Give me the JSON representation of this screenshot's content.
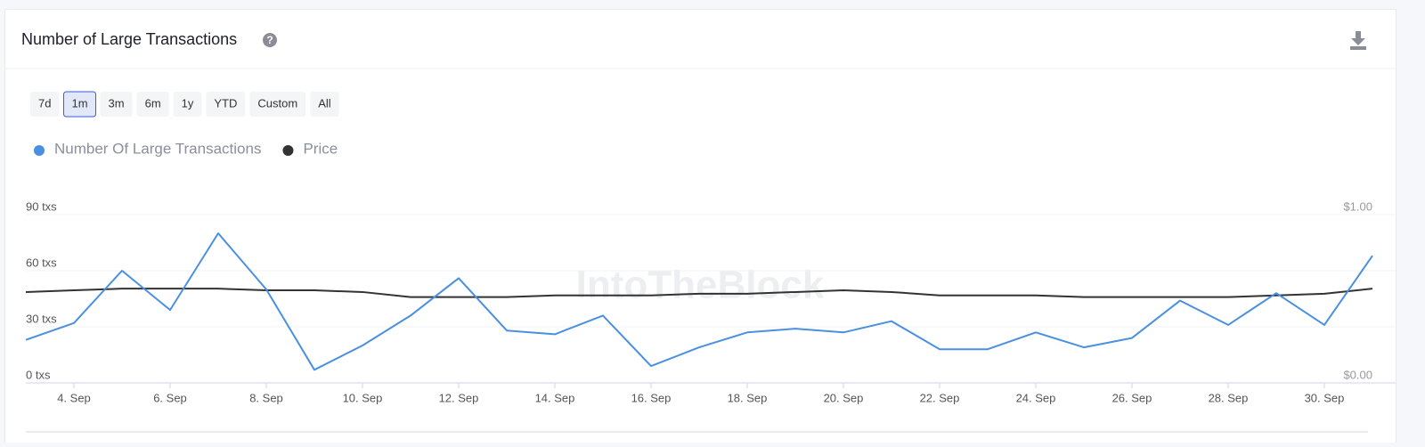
{
  "header": {
    "title": "Number of Large Transactions"
  },
  "range_buttons": [
    "7d",
    "1m",
    "3m",
    "6m",
    "1y",
    "YTD",
    "Custom",
    "All"
  ],
  "selected_button": 1,
  "chart_data": {
    "type": "line",
    "watermark": "IntoTheBlock",
    "categories": [
      null,
      "4. Sep",
      null,
      "6. Sep",
      null,
      "8. Sep",
      null,
      "10. Sep",
      null,
      "12. Sep",
      null,
      "14. Sep",
      null,
      "16. Sep",
      null,
      "18. Sep",
      null,
      "20. Sep",
      null,
      "22. Sep",
      null,
      "24. Sep",
      null,
      "26. Sep",
      null,
      "28. Sep",
      null,
      "30. Sep",
      null
    ],
    "series": [
      {
        "name": "Number Of Large Transactions",
        "color": "#4a90e2",
        "values": [
          23,
          32,
          60,
          39,
          80,
          50,
          7,
          20,
          36,
          56,
          28,
          26,
          36,
          9,
          19,
          27,
          29,
          27,
          33,
          18,
          18,
          27,
          19,
          24,
          44,
          31,
          48,
          31,
          68
        ]
      },
      {
        "name": "Price",
        "color": "#333333",
        "axis": "y2",
        "values": [
          0.54,
          0.55,
          0.56,
          0.56,
          0.56,
          0.55,
          0.55,
          0.54,
          0.51,
          0.51,
          0.51,
          0.52,
          0.52,
          0.52,
          0.53,
          0.53,
          0.54,
          0.55,
          0.54,
          0.52,
          0.52,
          0.52,
          0.51,
          0.51,
          0.51,
          0.51,
          0.52,
          0.53,
          0.56
        ]
      }
    ],
    "ylim": [
      0,
      90
    ],
    "yticks": [
      {
        "value": 0,
        "label": "0 txs"
      },
      {
        "value": 30,
        "label": "30 txs"
      },
      {
        "value": 60,
        "label": "60 txs"
      },
      {
        "value": 90,
        "label": "90 txs"
      }
    ],
    "y2lim": [
      0,
      1
    ],
    "y2ticks": [
      {
        "value": 0,
        "label": "$0.00"
      },
      {
        "value": 1,
        "label": "$1.00"
      }
    ],
    "grid": true
  }
}
